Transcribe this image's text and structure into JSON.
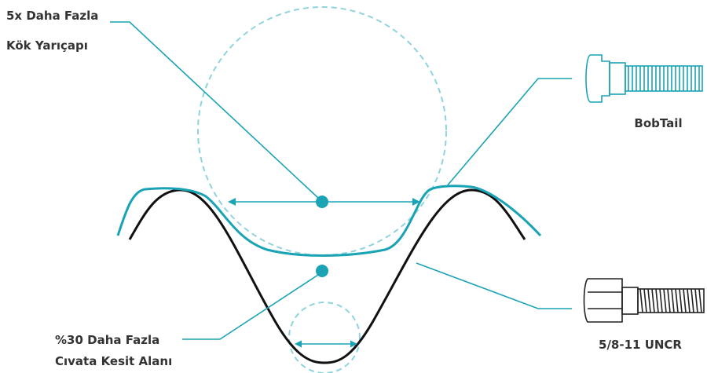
{
  "labels": {
    "root_line1": "5x Daha Fazla",
    "root_line2": "Kök Yarıçapı",
    "area_line1": "%30 Daha Fazla",
    "area_line2": "Cıvata Kesit Alanı"
  },
  "bolts": {
    "bobtail": "BobTail",
    "uncr": "5/8-11 UNCR"
  }
}
